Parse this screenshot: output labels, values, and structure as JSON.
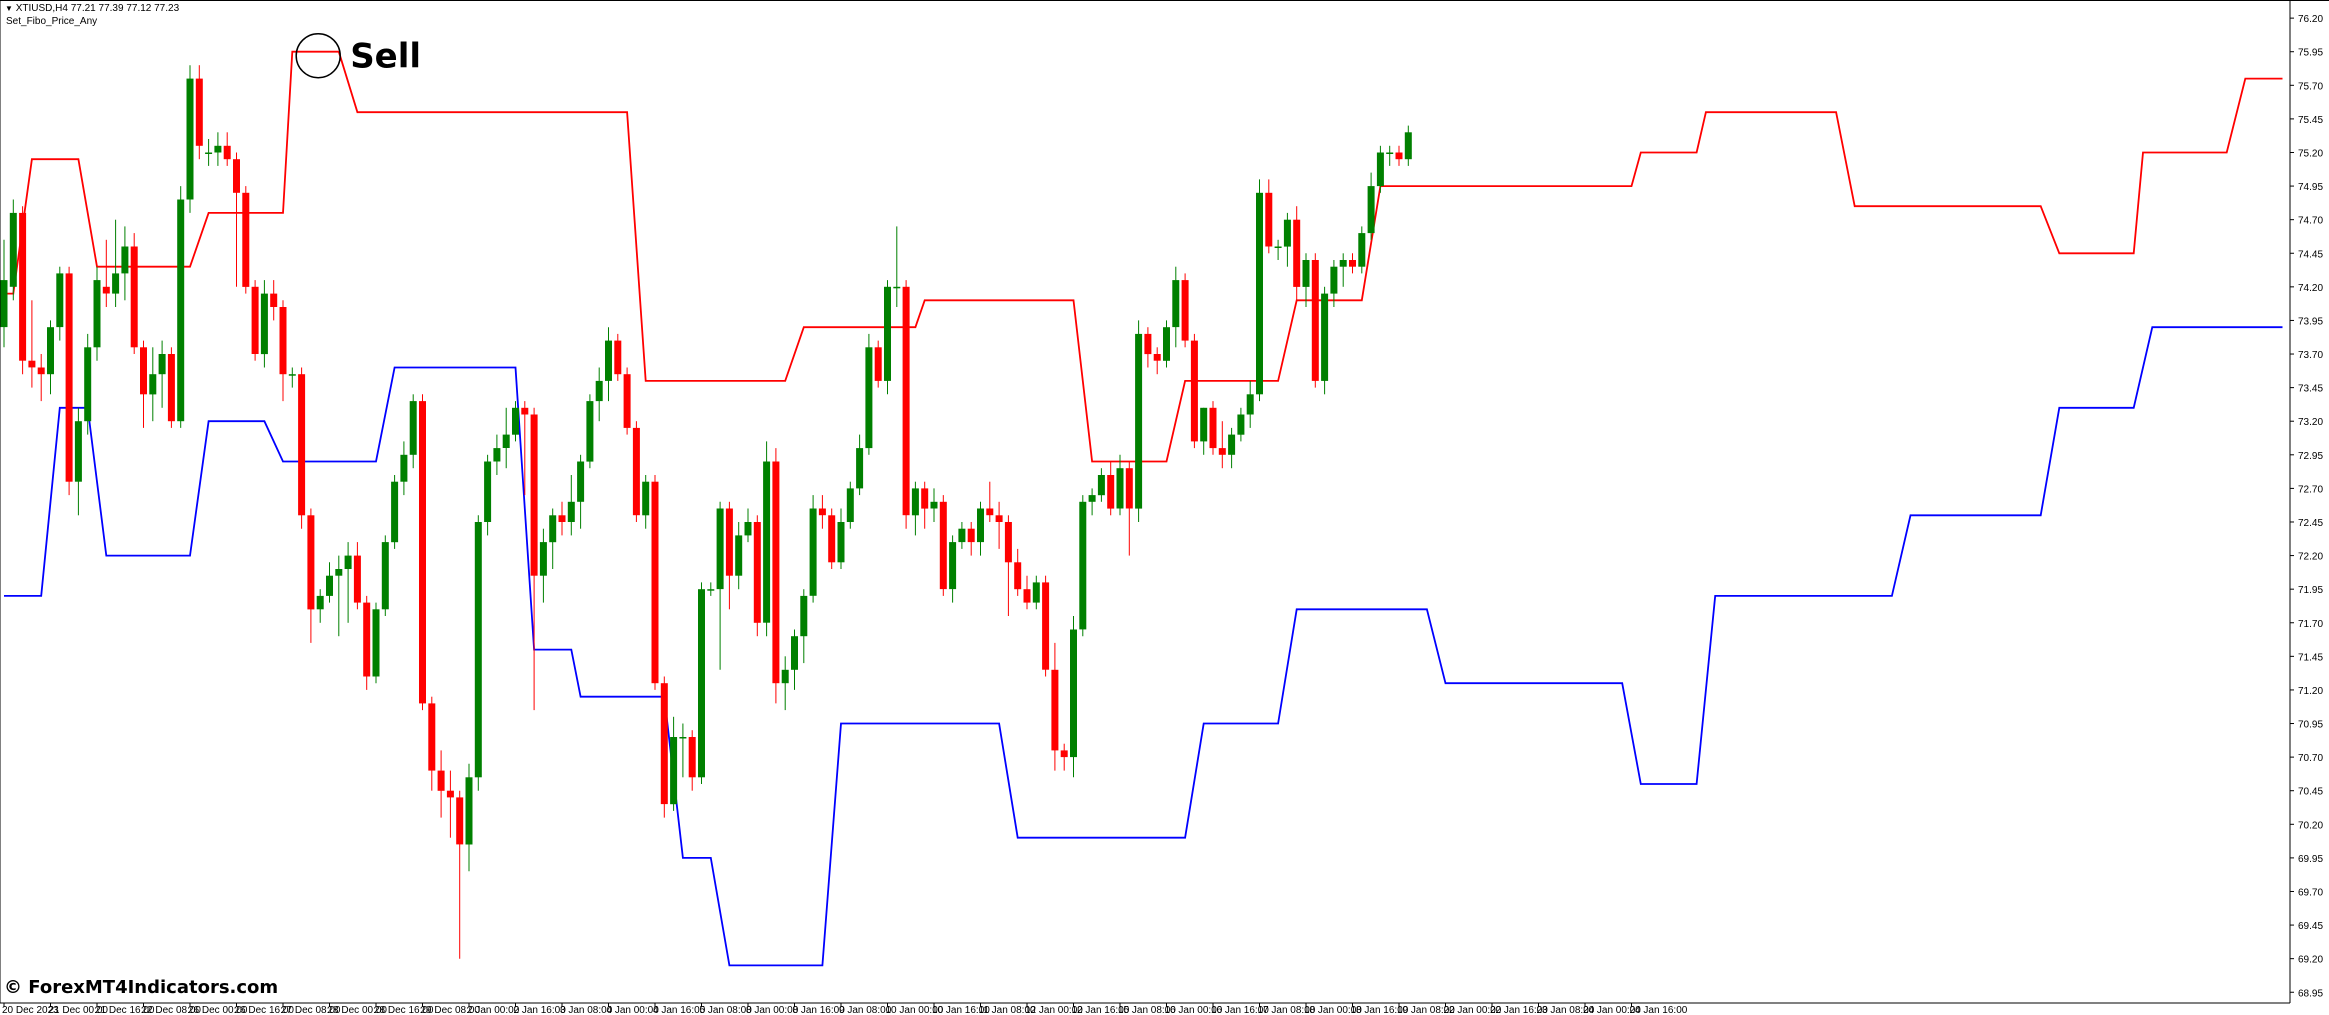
{
  "header": {
    "symbol_line": "XTIUSD,H4  77.21 77.39 77.12 77.23",
    "indicator_name": "Set_Fibo_Price_Any"
  },
  "watermark": "© ForexMT4Indicators.com",
  "annotation": {
    "label": "Sell"
  },
  "colors": {
    "bull": "#008000",
    "bear": "#ff0000",
    "upper_line": "#ff0000",
    "lower_line": "#0000ff",
    "axis": "#000000",
    "background": "#ffffff"
  },
  "chart_data": {
    "type": "candlestick",
    "symbol": "XTIUSD",
    "timeframe": "H4",
    "ylim": [
      68.87,
      76.32
    ],
    "y_ticks": [
      76.2,
      75.95,
      75.7,
      75.45,
      75.2,
      74.95,
      74.7,
      74.45,
      74.2,
      73.95,
      73.7,
      73.45,
      73.2,
      72.95,
      72.7,
      72.45,
      72.2,
      71.95,
      71.7,
      71.45,
      71.2,
      70.95,
      70.7,
      70.45,
      70.2,
      69.95,
      69.7,
      69.45,
      69.2,
      68.95
    ],
    "x_ticks": [
      {
        "label": "20 Dec 2023",
        "bar": 0
      },
      {
        "label": "21 Dec 00:00",
        "bar": 5
      },
      {
        "label": "21 Dec 16:00",
        "bar": 10
      },
      {
        "label": "22 Dec 08:00",
        "bar": 15
      },
      {
        "label": "26 Dec 00:00",
        "bar": 20
      },
      {
        "label": "26 Dec 16:00",
        "bar": 25
      },
      {
        "label": "27 Dec 08:00",
        "bar": 30
      },
      {
        "label": "28 Dec 00:00",
        "bar": 35
      },
      {
        "label": "28 Dec 16:00",
        "bar": 40
      },
      {
        "label": "29 Dec 08:00",
        "bar": 45
      },
      {
        "label": "2 Jan 00:00",
        "bar": 50
      },
      {
        "label": "2 Jan 16:00",
        "bar": 55
      },
      {
        "label": "3 Jan 08:00",
        "bar": 60
      },
      {
        "label": "4 Jan 00:00",
        "bar": 65
      },
      {
        "label": "4 Jan 16:00",
        "bar": 70
      },
      {
        "label": "5 Jan 08:00",
        "bar": 75
      },
      {
        "label": "8 Jan 00:00",
        "bar": 80
      },
      {
        "label": "8 Jan 16:00",
        "bar": 85
      },
      {
        "label": "9 Jan 08:00",
        "bar": 90
      },
      {
        "label": "10 Jan 00:00",
        "bar": 95
      },
      {
        "label": "10 Jan 16:00",
        "bar": 100
      },
      {
        "label": "11 Jan 08:00",
        "bar": 105
      },
      {
        "label": "12 Jan 00:00",
        "bar": 110
      },
      {
        "label": "12 Jan 16:00",
        "bar": 115
      },
      {
        "label": "15 Jan 08:00",
        "bar": 120
      },
      {
        "label": "16 Jan 00:00",
        "bar": 125
      },
      {
        "label": "16 Jan 16:00",
        "bar": 130
      },
      {
        "label": "17 Jan 08:00",
        "bar": 135
      },
      {
        "label": "18 Jan 00:00",
        "bar": 140
      },
      {
        "label": "18 Jan 16:00",
        "bar": 145
      },
      {
        "label": "19 Jan 08:00",
        "bar": 150
      },
      {
        "label": "22 Jan 00:00",
        "bar": 155
      },
      {
        "label": "22 Jan 16:00",
        "bar": 160
      },
      {
        "label": "23 Jan 08:00",
        "bar": 165
      },
      {
        "label": "24 Jan 00:00",
        "bar": 170
      },
      {
        "label": "24 Jan 16:00",
        "bar": 175
      }
    ],
    "candles": [
      [
        73.9,
        74.55,
        73.75,
        74.25
      ],
      [
        74.2,
        74.85,
        74.1,
        74.75
      ],
      [
        74.75,
        74.8,
        73.55,
        73.65
      ],
      [
        73.65,
        74.1,
        73.45,
        73.6
      ],
      [
        73.6,
        73.7,
        73.35,
        73.55
      ],
      [
        73.55,
        73.95,
        73.4,
        73.9
      ],
      [
        73.9,
        74.35,
        73.8,
        74.3
      ],
      [
        74.3,
        74.35,
        72.65,
        72.75
      ],
      [
        72.75,
        73.3,
        72.5,
        73.2
      ],
      [
        73.2,
        73.85,
        73.1,
        73.75
      ],
      [
        73.75,
        74.35,
        73.65,
        74.25
      ],
      [
        74.2,
        74.55,
        74.05,
        74.15
      ],
      [
        74.15,
        74.7,
        74.05,
        74.3
      ],
      [
        74.3,
        74.65,
        74.1,
        74.5
      ],
      [
        74.5,
        74.6,
        73.7,
        73.75
      ],
      [
        73.75,
        73.8,
        73.15,
        73.4
      ],
      [
        73.4,
        73.75,
        73.2,
        73.55
      ],
      [
        73.55,
        73.8,
        73.3,
        73.7
      ],
      [
        73.7,
        73.75,
        73.15,
        73.2
      ],
      [
        73.2,
        74.95,
        73.15,
        74.85
      ],
      [
        74.85,
        75.85,
        74.75,
        75.75
      ],
      [
        75.75,
        75.85,
        75.15,
        75.25
      ],
      [
        75.2,
        75.3,
        75.1,
        75.2
      ],
      [
        75.2,
        75.35,
        75.1,
        75.25
      ],
      [
        75.25,
        75.35,
        75.1,
        75.15
      ],
      [
        75.15,
        75.2,
        74.2,
        74.9
      ],
      [
        74.9,
        74.95,
        74.15,
        74.2
      ],
      [
        74.2,
        74.25,
        73.65,
        73.7
      ],
      [
        73.7,
        74.25,
        73.6,
        74.15
      ],
      [
        74.15,
        74.25,
        73.95,
        74.05
      ],
      [
        74.05,
        74.1,
        73.35,
        73.55
      ],
      [
        73.55,
        73.6,
        73.45,
        73.55
      ],
      [
        73.55,
        73.6,
        72.4,
        72.5
      ],
      [
        72.5,
        72.55,
        71.55,
        71.8
      ],
      [
        71.8,
        71.95,
        71.7,
        71.9
      ],
      [
        71.9,
        72.15,
        71.85,
        72.05
      ],
      [
        72.05,
        72.2,
        71.6,
        72.1
      ],
      [
        72.1,
        72.3,
        71.7,
        72.2
      ],
      [
        72.2,
        72.3,
        71.8,
        71.85
      ],
      [
        71.85,
        71.9,
        71.2,
        71.3
      ],
      [
        71.3,
        71.85,
        71.25,
        71.8
      ],
      [
        71.8,
        72.35,
        71.75,
        72.3
      ],
      [
        72.3,
        72.8,
        72.25,
        72.75
      ],
      [
        72.75,
        73.05,
        72.65,
        72.95
      ],
      [
        72.95,
        73.4,
        72.85,
        73.35
      ],
      [
        73.35,
        73.4,
        71.05,
        71.1
      ],
      [
        71.1,
        71.15,
        70.45,
        70.6
      ],
      [
        70.6,
        70.75,
        70.25,
        70.45
      ],
      [
        70.45,
        70.6,
        70.1,
        70.4
      ],
      [
        70.4,
        70.45,
        69.2,
        70.05
      ],
      [
        70.05,
        70.65,
        69.85,
        70.55
      ],
      [
        70.55,
        72.5,
        70.45,
        72.45
      ],
      [
        72.45,
        72.95,
        72.35,
        72.9
      ],
      [
        72.9,
        73.1,
        72.8,
        73.0
      ],
      [
        73.0,
        73.3,
        72.85,
        73.1
      ],
      [
        73.1,
        73.35,
        73.05,
        73.3
      ],
      [
        73.3,
        73.35,
        72.65,
        73.25
      ],
      [
        73.25,
        73.3,
        71.05,
        72.05
      ],
      [
        72.05,
        72.4,
        71.85,
        72.3
      ],
      [
        72.3,
        72.55,
        72.1,
        72.5
      ],
      [
        72.5,
        72.6,
        72.35,
        72.45
      ],
      [
        72.45,
        72.8,
        72.35,
        72.6
      ],
      [
        72.6,
        72.95,
        72.4,
        72.9
      ],
      [
        72.9,
        73.4,
        72.85,
        73.35
      ],
      [
        73.35,
        73.6,
        73.2,
        73.5
      ],
      [
        73.5,
        73.9,
        73.35,
        73.8
      ],
      [
        73.8,
        73.85,
        73.5,
        73.55
      ],
      [
        73.55,
        73.6,
        73.1,
        73.15
      ],
      [
        73.15,
        73.2,
        72.45,
        72.5
      ],
      [
        72.5,
        72.8,
        72.4,
        72.75
      ],
      [
        72.75,
        72.8,
        71.2,
        71.25
      ],
      [
        71.25,
        71.3,
        70.25,
        70.35
      ],
      [
        70.35,
        71.0,
        70.3,
        70.85
      ],
      [
        70.85,
        70.95,
        70.55,
        70.85
      ],
      [
        70.85,
        70.9,
        70.45,
        70.55
      ],
      [
        70.55,
        72.0,
        70.5,
        71.95
      ],
      [
        71.95,
        72.0,
        71.9,
        71.95
      ],
      [
        71.95,
        72.6,
        71.35,
        72.55
      ],
      [
        72.55,
        72.6,
        71.8,
        72.05
      ],
      [
        72.05,
        72.45,
        71.95,
        72.35
      ],
      [
        72.35,
        72.55,
        72.3,
        72.45
      ],
      [
        72.45,
        72.5,
        71.6,
        71.7
      ],
      [
        71.7,
        73.05,
        71.6,
        72.9
      ],
      [
        72.9,
        73.0,
        71.1,
        71.25
      ],
      [
        71.25,
        71.45,
        71.05,
        71.35
      ],
      [
        71.35,
        71.65,
        71.2,
        71.6
      ],
      [
        71.6,
        71.95,
        71.4,
        71.9
      ],
      [
        71.9,
        72.65,
        71.85,
        72.55
      ],
      [
        72.55,
        72.65,
        72.4,
        72.5
      ],
      [
        72.5,
        72.55,
        72.1,
        72.15
      ],
      [
        72.15,
        72.55,
        72.1,
        72.45
      ],
      [
        72.45,
        72.75,
        72.4,
        72.7
      ],
      [
        72.7,
        73.1,
        72.65,
        73.0
      ],
      [
        73.0,
        73.85,
        72.95,
        73.75
      ],
      [
        73.75,
        73.8,
        73.45,
        73.5
      ],
      [
        73.5,
        74.25,
        73.4,
        74.2
      ],
      [
        74.2,
        74.65,
        74.05,
        74.2
      ],
      [
        74.2,
        74.25,
        72.4,
        72.5
      ],
      [
        72.5,
        72.75,
        72.35,
        72.7
      ],
      [
        72.7,
        72.75,
        72.4,
        72.55
      ],
      [
        72.55,
        72.7,
        72.45,
        72.6
      ],
      [
        72.6,
        72.65,
        71.9,
        71.95
      ],
      [
        71.95,
        72.35,
        71.85,
        72.3
      ],
      [
        72.3,
        72.45,
        72.25,
        72.4
      ],
      [
        72.4,
        72.45,
        72.2,
        72.3
      ],
      [
        72.3,
        72.6,
        72.2,
        72.55
      ],
      [
        72.55,
        72.75,
        72.45,
        72.5
      ],
      [
        72.5,
        72.6,
        72.25,
        72.45
      ],
      [
        72.45,
        72.5,
        71.75,
        72.15
      ],
      [
        72.15,
        72.25,
        71.9,
        71.95
      ],
      [
        71.95,
        72.05,
        71.8,
        71.85
      ],
      [
        71.85,
        72.05,
        71.8,
        72.0
      ],
      [
        72.0,
        72.05,
        71.3,
        71.35
      ],
      [
        71.35,
        71.55,
        70.6,
        70.75
      ],
      [
        70.75,
        70.8,
        70.6,
        70.7
      ],
      [
        70.7,
        71.75,
        70.55,
        71.65
      ],
      [
        71.65,
        72.65,
        71.6,
        72.6
      ],
      [
        72.6,
        72.7,
        72.5,
        72.65
      ],
      [
        72.65,
        72.85,
        72.6,
        72.8
      ],
      [
        72.8,
        72.9,
        72.5,
        72.55
      ],
      [
        72.55,
        72.95,
        72.5,
        72.85
      ],
      [
        72.85,
        72.9,
        72.2,
        72.55
      ],
      [
        72.55,
        73.95,
        72.45,
        73.85
      ],
      [
        73.85,
        73.9,
        73.6,
        73.7
      ],
      [
        73.7,
        73.75,
        73.55,
        73.65
      ],
      [
        73.65,
        73.95,
        73.6,
        73.9
      ],
      [
        73.9,
        74.35,
        73.75,
        74.25
      ],
      [
        74.25,
        74.3,
        73.75,
        73.8
      ],
      [
        73.8,
        73.85,
        73.0,
        73.05
      ],
      [
        73.05,
        73.3,
        72.95,
        73.3
      ],
      [
        73.3,
        73.35,
        72.95,
        73.0
      ],
      [
        73.0,
        73.2,
        72.85,
        72.95
      ],
      [
        72.95,
        73.15,
        72.85,
        73.1
      ],
      [
        73.1,
        73.3,
        73.05,
        73.25
      ],
      [
        73.25,
        73.5,
        73.15,
        73.4
      ],
      [
        73.4,
        75.0,
        73.35,
        74.9
      ],
      [
        74.9,
        75.0,
        74.45,
        74.5
      ],
      [
        74.5,
        74.55,
        74.4,
        74.5
      ],
      [
        74.5,
        74.75,
        74.35,
        74.7
      ],
      [
        74.7,
        74.8,
        74.1,
        74.2
      ],
      [
        74.2,
        74.45,
        74.05,
        74.4
      ],
      [
        74.4,
        74.45,
        73.45,
        73.5
      ],
      [
        73.5,
        74.2,
        73.4,
        74.15
      ],
      [
        74.15,
        74.4,
        74.05,
        74.35
      ],
      [
        74.35,
        74.45,
        74.2,
        74.4
      ],
      [
        74.4,
        74.45,
        74.3,
        74.35
      ],
      [
        74.35,
        74.65,
        74.3,
        74.6
      ],
      [
        74.6,
        75.05,
        74.55,
        74.95
      ],
      [
        74.95,
        75.25,
        74.9,
        75.2
      ],
      [
        75.2,
        75.25,
        75.1,
        75.2
      ],
      [
        75.2,
        75.25,
        75.1,
        75.15
      ],
      [
        75.15,
        75.4,
        75.1,
        75.35
      ]
    ],
    "series": [
      {
        "name": "",
        "color": "#ff0000",
        "points": [
          [
            0,
            74.15
          ],
          [
            1,
            74.15
          ],
          [
            3,
            75.15
          ],
          [
            8,
            75.15
          ],
          [
            10,
            74.35
          ],
          [
            20,
            74.35
          ],
          [
            22,
            74.75
          ],
          [
            30,
            74.75
          ],
          [
            31,
            75.95
          ],
          [
            36,
            75.95
          ],
          [
            38,
            75.5
          ],
          [
            67,
            75.5
          ],
          [
            69,
            73.5
          ],
          [
            84,
            73.5
          ],
          [
            86,
            73.9
          ],
          [
            98,
            73.9
          ],
          [
            99,
            74.1
          ],
          [
            115,
            74.1
          ],
          [
            117,
            72.9
          ],
          [
            125,
            72.9
          ],
          [
            127,
            73.5
          ],
          [
            137,
            73.5
          ],
          [
            139,
            74.1
          ],
          [
            146,
            74.1
          ],
          [
            148,
            74.95
          ],
          [
            175,
            74.95
          ],
          [
            176,
            75.2
          ],
          [
            182,
            75.2
          ],
          [
            183,
            75.5
          ],
          [
            197,
            75.5
          ],
          [
            199,
            74.8
          ],
          [
            219,
            74.8
          ],
          [
            221,
            74.45
          ],
          [
            229,
            74.45
          ],
          [
            230,
            75.2
          ],
          [
            239,
            75.2
          ],
          [
            241,
            75.75
          ],
          [
            245,
            75.75
          ]
        ]
      },
      {
        "name": "",
        "color": "#0000ff",
        "points": [
          [
            0,
            71.9
          ],
          [
            4,
            71.9
          ],
          [
            6,
            73.3
          ],
          [
            9,
            73.3
          ],
          [
            11,
            72.2
          ],
          [
            20,
            72.2
          ],
          [
            22,
            73.2
          ],
          [
            28,
            73.2
          ],
          [
            30,
            72.9
          ],
          [
            40,
            72.9
          ],
          [
            42,
            73.6
          ],
          [
            55,
            73.6
          ],
          [
            57,
            71.5
          ],
          [
            61,
            71.5
          ],
          [
            62,
            71.15
          ],
          [
            71,
            71.15
          ],
          [
            73,
            69.95
          ],
          [
            76,
            69.95
          ],
          [
            78,
            69.15
          ],
          [
            88,
            69.15
          ],
          [
            90,
            70.95
          ],
          [
            107,
            70.95
          ],
          [
            109,
            70.1
          ],
          [
            127,
            70.1
          ],
          [
            129,
            70.95
          ],
          [
            137,
            70.95
          ],
          [
            139,
            71.8
          ],
          [
            153,
            71.8
          ],
          [
            155,
            71.25
          ],
          [
            174,
            71.25
          ],
          [
            176,
            70.5
          ],
          [
            182,
            70.5
          ],
          [
            184,
            71.9
          ],
          [
            203,
            71.9
          ],
          [
            205,
            72.5
          ],
          [
            219,
            72.5
          ],
          [
            221,
            73.3
          ],
          [
            229,
            73.3
          ],
          [
            231,
            73.9
          ],
          [
            245,
            73.9
          ]
        ]
      }
    ],
    "xlabel": "",
    "ylabel": "",
    "grid": false,
    "legend": "none",
    "sell_marker": {
      "bar": 34,
      "price": 75.95
    }
  }
}
